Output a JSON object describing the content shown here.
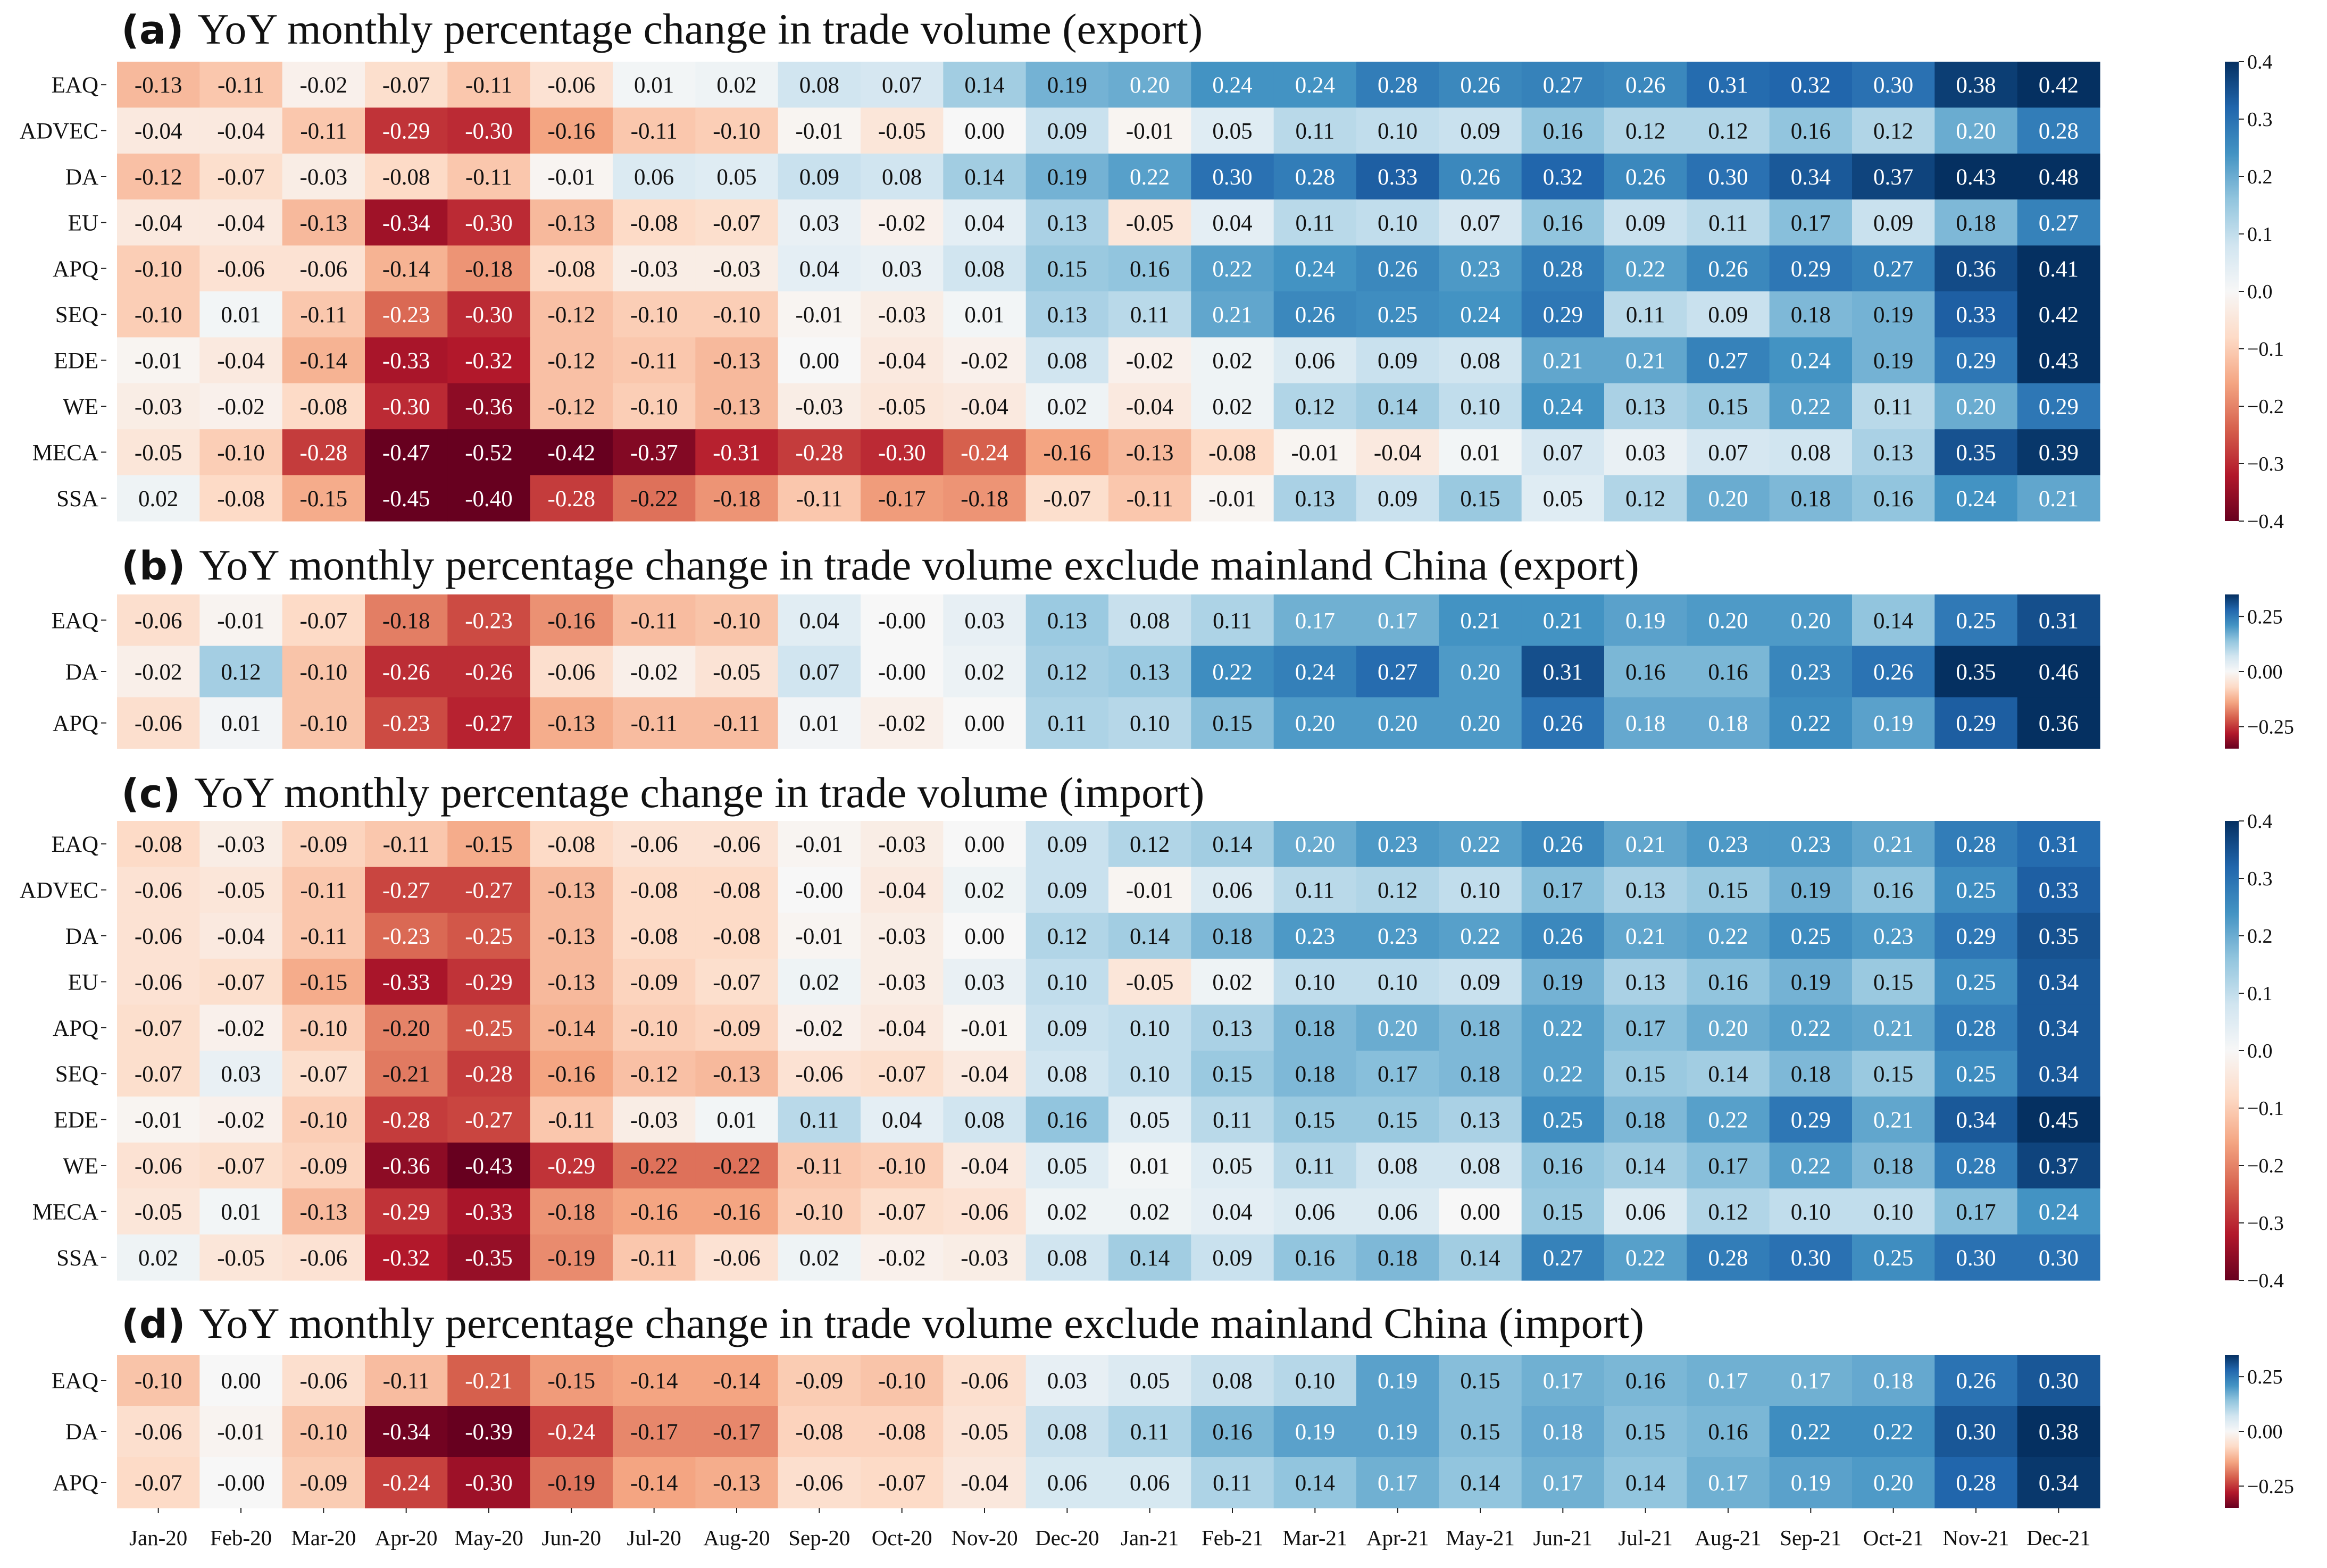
{
  "months": [
    "Jan-20",
    "Feb-20",
    "Mar-20",
    "Apr-20",
    "May-20",
    "Jun-20",
    "Jul-20",
    "Aug-20",
    "Sep-20",
    "Oct-20",
    "Nov-20",
    "Dec-20",
    "Jan-21",
    "Feb-21",
    "Mar-21",
    "Apr-21",
    "May-21",
    "Jun-21",
    "Jul-21",
    "Aug-21",
    "Sep-21",
    "Oct-21",
    "Nov-21",
    "Dec-21"
  ],
  "colors": {
    "negative_end": "#67001f",
    "mid": "#f7f7f7",
    "positive_end": "#053061"
  },
  "chart_data": [
    {
      "type": "heatmap",
      "panel_tag": "(a)",
      "title": "YoY monthly percentage change in trade volume (export)",
      "rows": [
        "EAQ",
        "ADVEC",
        "DA",
        "EU",
        "APQ",
        "SEQ",
        "EDE",
        "WE",
        "MECA",
        "SSA"
      ],
      "vmin": -0.4,
      "vmax": 0.4,
      "colorbar_ticks": [
        0.4,
        0.3,
        0.2,
        0.1,
        0.0,
        -0.1,
        -0.2,
        -0.3,
        -0.4
      ],
      "colorbar_labels": [
        "0.4",
        "0.3",
        "0.2",
        "0.1",
        "0.0",
        "−0.1",
        "−0.2",
        "−0.3",
        "−0.4"
      ],
      "values": [
        [
          -0.13,
          -0.11,
          -0.02,
          -0.07,
          -0.11,
          -0.06,
          0.01,
          0.02,
          0.08,
          0.07,
          0.14,
          0.19,
          0.2,
          0.24,
          0.24,
          0.28,
          0.26,
          0.27,
          0.26,
          0.31,
          0.32,
          0.3,
          0.38,
          0.42
        ],
        [
          -0.04,
          -0.04,
          -0.11,
          -0.29,
          -0.3,
          -0.16,
          -0.11,
          -0.1,
          -0.01,
          -0.05,
          0.0,
          0.09,
          -0.01,
          0.05,
          0.11,
          0.1,
          0.09,
          0.16,
          0.12,
          0.12,
          0.16,
          0.12,
          0.2,
          0.28
        ],
        [
          -0.12,
          -0.07,
          -0.03,
          -0.08,
          -0.11,
          -0.01,
          0.06,
          0.05,
          0.09,
          0.08,
          0.14,
          0.19,
          0.22,
          0.3,
          0.28,
          0.33,
          0.26,
          0.32,
          0.26,
          0.3,
          0.34,
          0.37,
          0.43,
          0.48
        ],
        [
          -0.04,
          -0.04,
          -0.13,
          -0.34,
          -0.3,
          -0.13,
          -0.08,
          -0.07,
          0.03,
          -0.02,
          0.04,
          0.13,
          -0.05,
          0.04,
          0.11,
          0.1,
          0.07,
          0.16,
          0.09,
          0.11,
          0.17,
          0.09,
          0.18,
          0.27
        ],
        [
          -0.1,
          -0.06,
          -0.06,
          -0.14,
          -0.18,
          -0.08,
          -0.03,
          -0.03,
          0.04,
          0.03,
          0.08,
          0.15,
          0.16,
          0.22,
          0.24,
          0.26,
          0.23,
          0.28,
          0.22,
          0.26,
          0.29,
          0.27,
          0.36,
          0.41
        ],
        [
          -0.1,
          0.01,
          -0.11,
          -0.23,
          -0.3,
          -0.12,
          -0.1,
          -0.1,
          -0.01,
          -0.03,
          0.01,
          0.13,
          0.11,
          0.21,
          0.26,
          0.25,
          0.24,
          0.29,
          0.11,
          0.09,
          0.18,
          0.19,
          0.33,
          0.42
        ],
        [
          -0.01,
          -0.04,
          -0.14,
          -0.33,
          -0.32,
          -0.12,
          -0.11,
          -0.13,
          0.0,
          -0.04,
          -0.02,
          0.08,
          -0.02,
          0.02,
          0.06,
          0.09,
          0.08,
          0.21,
          0.21,
          0.27,
          0.24,
          0.19,
          0.29,
          0.43
        ],
        [
          -0.03,
          -0.02,
          -0.08,
          -0.3,
          -0.36,
          -0.12,
          -0.1,
          -0.13,
          -0.03,
          -0.05,
          -0.04,
          0.02,
          -0.04,
          0.02,
          0.12,
          0.14,
          0.1,
          0.24,
          0.13,
          0.15,
          0.22,
          0.11,
          0.2,
          0.29
        ],
        [
          -0.05,
          -0.1,
          -0.28,
          -0.47,
          -0.52,
          -0.42,
          -0.37,
          -0.31,
          -0.28,
          -0.3,
          -0.24,
          -0.16,
          -0.13,
          -0.08,
          -0.01,
          -0.04,
          0.01,
          0.07,
          0.03,
          0.07,
          0.08,
          0.13,
          0.35,
          0.39
        ],
        [
          0.02,
          -0.08,
          -0.15,
          -0.45,
          -0.4,
          -0.28,
          -0.22,
          -0.18,
          -0.11,
          -0.17,
          -0.18,
          -0.07,
          -0.11,
          -0.01,
          0.13,
          0.09,
          0.15,
          0.05,
          0.12,
          0.2,
          0.18,
          0.16,
          0.24,
          0.21
        ]
      ]
    },
    {
      "type": "heatmap",
      "panel_tag": "(b)",
      "title": "YoY monthly percentage change in trade volume exclude mainland China (export)",
      "rows": [
        "EAQ",
        "DA",
        "APQ"
      ],
      "vmin": -0.35,
      "vmax": 0.35,
      "colorbar_ticks": [
        0.25,
        0.0,
        -0.25
      ],
      "colorbar_labels": [
        "0.25",
        "0.00",
        "−0.25"
      ],
      "values": [
        [
          -0.06,
          -0.01,
          -0.07,
          -0.18,
          -0.23,
          -0.16,
          -0.11,
          -0.1,
          0.04,
          -0.0,
          0.03,
          0.13,
          0.08,
          0.11,
          0.17,
          0.17,
          0.21,
          0.21,
          0.19,
          0.2,
          0.2,
          0.14,
          0.25,
          0.31
        ],
        [
          -0.02,
          0.12,
          -0.1,
          -0.26,
          -0.26,
          -0.06,
          -0.02,
          -0.05,
          0.07,
          -0.0,
          0.02,
          0.12,
          0.13,
          0.22,
          0.24,
          0.27,
          0.2,
          0.31,
          0.16,
          0.16,
          0.23,
          0.26,
          0.35,
          0.46
        ],
        [
          -0.06,
          0.01,
          -0.1,
          -0.23,
          -0.27,
          -0.13,
          -0.11,
          -0.11,
          0.01,
          -0.02,
          0.0,
          0.11,
          0.1,
          0.15,
          0.2,
          0.2,
          0.2,
          0.26,
          0.18,
          0.18,
          0.22,
          0.19,
          0.29,
          0.36
        ]
      ]
    },
    {
      "type": "heatmap",
      "panel_tag": "(c)",
      "title": "YoY monthly percentage change in trade volume (import)",
      "rows": [
        "EAQ",
        "ADVEC",
        "DA",
        "EU",
        "APQ",
        "SEQ",
        "EDE",
        "WE",
        "MECA",
        "SSA"
      ],
      "vmin": -0.4,
      "vmax": 0.4,
      "colorbar_ticks": [
        0.4,
        0.3,
        0.2,
        0.1,
        0.0,
        -0.1,
        -0.2,
        -0.3,
        -0.4
      ],
      "colorbar_labels": [
        "0.4",
        "0.3",
        "0.2",
        "0.1",
        "0.0",
        "−0.1",
        "−0.2",
        "−0.3",
        "−0.4"
      ],
      "values": [
        [
          -0.08,
          -0.03,
          -0.09,
          -0.11,
          -0.15,
          -0.08,
          -0.06,
          -0.06,
          -0.01,
          -0.03,
          0.0,
          0.09,
          0.12,
          0.14,
          0.2,
          0.23,
          0.22,
          0.26,
          0.21,
          0.23,
          0.23,
          0.21,
          0.28,
          0.31
        ],
        [
          -0.06,
          -0.05,
          -0.11,
          -0.27,
          -0.27,
          -0.13,
          -0.08,
          -0.08,
          -0.0,
          -0.04,
          0.02,
          0.09,
          -0.01,
          0.06,
          0.11,
          0.12,
          0.1,
          0.17,
          0.13,
          0.15,
          0.19,
          0.16,
          0.25,
          0.33
        ],
        [
          -0.06,
          -0.04,
          -0.11,
          -0.23,
          -0.25,
          -0.13,
          -0.08,
          -0.08,
          -0.01,
          -0.03,
          0.0,
          0.12,
          0.14,
          0.18,
          0.23,
          0.23,
          0.22,
          0.26,
          0.21,
          0.22,
          0.25,
          0.23,
          0.29,
          0.35
        ],
        [
          -0.06,
          -0.07,
          -0.15,
          -0.33,
          -0.29,
          -0.13,
          -0.09,
          -0.07,
          0.02,
          -0.03,
          0.03,
          0.1,
          -0.05,
          0.02,
          0.1,
          0.1,
          0.09,
          0.19,
          0.13,
          0.16,
          0.19,
          0.15,
          0.25,
          0.34
        ],
        [
          -0.07,
          -0.02,
          -0.1,
          -0.2,
          -0.25,
          -0.14,
          -0.1,
          -0.09,
          -0.02,
          -0.04,
          -0.01,
          0.09,
          0.1,
          0.13,
          0.18,
          0.2,
          0.18,
          0.22,
          0.17,
          0.2,
          0.22,
          0.21,
          0.28,
          0.34
        ],
        [
          -0.07,
          0.03,
          -0.07,
          -0.21,
          -0.28,
          -0.16,
          -0.12,
          -0.13,
          -0.06,
          -0.07,
          -0.04,
          0.08,
          0.1,
          0.15,
          0.18,
          0.17,
          0.18,
          0.22,
          0.15,
          0.14,
          0.18,
          0.15,
          0.25,
          0.34
        ],
        [
          -0.01,
          -0.02,
          -0.1,
          -0.28,
          -0.27,
          -0.11,
          -0.03,
          0.01,
          0.11,
          0.04,
          0.08,
          0.16,
          0.05,
          0.11,
          0.15,
          0.15,
          0.13,
          0.25,
          0.18,
          0.22,
          0.29,
          0.21,
          0.34,
          0.45
        ],
        [
          -0.06,
          -0.07,
          -0.09,
          -0.36,
          -0.43,
          -0.29,
          -0.22,
          -0.22,
          -0.11,
          -0.1,
          -0.04,
          0.05,
          0.01,
          0.05,
          0.11,
          0.08,
          0.08,
          0.16,
          0.14,
          0.17,
          0.22,
          0.18,
          0.28,
          0.37
        ],
        [
          -0.05,
          0.01,
          -0.13,
          -0.29,
          -0.33,
          -0.18,
          -0.16,
          -0.16,
          -0.1,
          -0.07,
          -0.06,
          0.02,
          0.02,
          0.04,
          0.06,
          0.06,
          0.0,
          0.15,
          0.06,
          0.12,
          0.1,
          0.1,
          0.17,
          0.24
        ],
        [
          0.02,
          -0.05,
          -0.06,
          -0.32,
          -0.35,
          -0.19,
          -0.11,
          -0.06,
          0.02,
          -0.02,
          -0.03,
          0.08,
          0.14,
          0.09,
          0.16,
          0.18,
          0.14,
          0.27,
          0.22,
          0.28,
          0.3,
          0.25,
          0.3,
          0.3
        ]
      ]
    },
    {
      "type": "heatmap",
      "panel_tag": "(d)",
      "title": "YoY monthly percentage change in trade volume exclude mainland China (import)",
      "rows": [
        "EAQ",
        "DA",
        "APQ"
      ],
      "vmin": -0.35,
      "vmax": 0.35,
      "colorbar_ticks": [
        0.25,
        0.0,
        -0.25
      ],
      "colorbar_labels": [
        "0.25",
        "0.00",
        "−0.25"
      ],
      "values": [
        [
          -0.1,
          0.0,
          -0.06,
          -0.11,
          -0.21,
          -0.15,
          -0.14,
          -0.14,
          -0.09,
          -0.1,
          -0.06,
          0.03,
          0.05,
          0.08,
          0.1,
          0.19,
          0.15,
          0.17,
          0.16,
          0.17,
          0.17,
          0.18,
          0.26,
          0.3
        ],
        [
          -0.06,
          -0.01,
          -0.1,
          -0.34,
          -0.39,
          -0.24,
          -0.17,
          -0.17,
          -0.08,
          -0.08,
          -0.05,
          0.08,
          0.11,
          0.16,
          0.19,
          0.19,
          0.15,
          0.18,
          0.15,
          0.16,
          0.22,
          0.22,
          0.3,
          0.38
        ],
        [
          -0.07,
          -0.0,
          -0.09,
          -0.24,
          -0.3,
          -0.19,
          -0.14,
          -0.13,
          -0.06,
          -0.07,
          -0.04,
          0.06,
          0.06,
          0.11,
          0.14,
          0.17,
          0.14,
          0.17,
          0.14,
          0.17,
          0.19,
          0.2,
          0.28,
          0.34
        ]
      ]
    }
  ]
}
